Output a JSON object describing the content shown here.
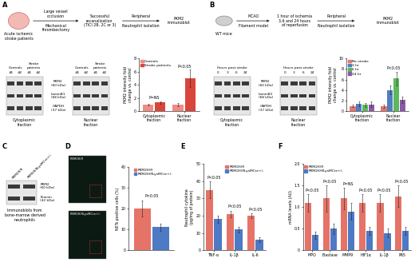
{
  "chart_data": [
    {
      "type": "bar",
      "ylabel": "PKM2 intensity fold\nchange vs. control",
      "categories": [
        "Cytoplasmic\nfraction",
        "Nuclear\nfraction"
      ],
      "series": [
        {
          "name": "Controls",
          "color": "#f08c84",
          "values": [
            1.0,
            1.0
          ],
          "errors": [
            0.15,
            0.25
          ]
        },
        {
          "name": "Stroke patients",
          "color": "#d9453b",
          "values": [
            1.3,
            5.0
          ],
          "errors": [
            0.2,
            1.3
          ]
        }
      ],
      "ylim": [
        0,
        8
      ],
      "yticks": [
        0,
        2,
        4,
        6,
        8
      ],
      "annotations": [
        "P=NS",
        "P<0.05"
      ],
      "legend": "upper left"
    },
    {
      "type": "bar",
      "ylabel": "PKM2 intensity fold\nchange vs. control",
      "categories": [
        "Cytoplasmic\nfraction",
        "Nuclear\nfraction"
      ],
      "series": [
        {
          "name": "Pre-stroke",
          "color": "#e8776e",
          "values": [
            1.0,
            1.0
          ],
          "errors": [
            0.2,
            0.3
          ]
        },
        {
          "name": "3 hr",
          "color": "#4f7fc0",
          "values": [
            1.4,
            4.0
          ],
          "errors": [
            0.5,
            0.8
          ]
        },
        {
          "name": "6 hr",
          "color": "#5cb85c",
          "values": [
            1.2,
            6.2
          ],
          "errors": [
            0.4,
            1.3
          ]
        },
        {
          "name": "24 hr",
          "color": "#8a5aa8",
          "values": [
            1.3,
            2.2
          ],
          "errors": [
            0.5,
            0.6
          ]
        }
      ],
      "ylim": [
        0,
        10
      ],
      "yticks": [
        0,
        2,
        4,
        6,
        8,
        10
      ],
      "annotations": [
        null,
        "P<0.05"
      ],
      "legend": "upper left"
    },
    {
      "type": "bar",
      "ylabel": "NETs positive cells (%)",
      "categories": [
        null
      ],
      "series": [
        {
          "name": "PKM2fl/fl",
          "color": "#e57368",
          "values": [
            20
          ],
          "errors": [
            4
          ]
        },
        {
          "name": "PKM2fl/flLysMCre+/-",
          "color": "#4e79c4",
          "values": [
            11
          ],
          "errors": [
            1.8
          ]
        }
      ],
      "ylim": [
        0,
        40
      ],
      "yticks": [
        0,
        10,
        20,
        30,
        40
      ],
      "annotations": [
        "P<0.05"
      ],
      "legend": "upper right",
      "tick_labels": "y"
    },
    {
      "type": "bar",
      "ylabel": "Neutrophil cytokine\n(pg/mg of protein)",
      "categories": [
        "TNF-α",
        "IL-1β",
        "IL-6"
      ],
      "series": [
        {
          "name": "PKM2fl/fl",
          "color": "#e57368",
          "values": [
            35,
            21,
            20
          ],
          "errors": [
            5,
            2,
            1.5
          ]
        },
        {
          "name": "PKM2fl/flLysMCre+/-",
          "color": "#4e79c4",
          "values": [
            18,
            12,
            6
          ],
          "errors": [
            2,
            1.5,
            1.5
          ]
        }
      ],
      "ylim": [
        0,
        50
      ],
      "yticks": [
        0,
        10,
        20,
        30,
        40,
        50
      ],
      "annotations": [
        "P<0.05",
        "P<0.05",
        "P<0.05"
      ],
      "legend": "upper right"
    },
    {
      "type": "bar",
      "ylabel": "mRNA levels (AU)",
      "categories": [
        "MPO",
        "Elastase",
        "MMP9",
        "HIF1α",
        "IL-1β",
        "P65"
      ],
      "series": [
        {
          "name": "PKM2fl/fl",
          "color": "#e57368",
          "values": [
            1.1,
            1.2,
            1.2,
            1.1,
            1.1,
            1.25
          ],
          "errors": [
            0.2,
            0.3,
            0.25,
            0.2,
            0.2,
            0.25
          ]
        },
        {
          "name": "PKM2fl/flLysMCre+/-",
          "color": "#4e79c4",
          "values": [
            0.35,
            0.5,
            0.9,
            0.45,
            0.4,
            0.45
          ],
          "errors": [
            0.08,
            0.12,
            0.2,
            0.1,
            0.1,
            0.1
          ]
        }
      ],
      "ylim": [
        0,
        2.0
      ],
      "yticks": [
        0,
        0.5,
        {
          "value": 1.0,
          "label": "1.0"
        },
        1.5,
        {
          "value": 2.0,
          "label": "2.0"
        }
      ],
      "annotations": [
        "P<0.05",
        "P<0.05",
        "P=NS",
        "P<0.05",
        "P<0.05",
        "P<0.05"
      ],
      "legend": "upper left"
    }
  ],
  "figure": {
    "panel_labels": [
      "A",
      "B",
      "C",
      "D",
      "E",
      "F"
    ],
    "a_flow": {
      "subject": "Acute ischemic\nstroke patients",
      "step1_top": "Large vessel\nocclusion",
      "step1_bottom": "Mechanical\nthrombectomy",
      "step2": "Successful\nrecanalization\n(TICI 2B, 2C or 3)",
      "step3_top": "Peripheral",
      "step3_bottom": "Neutrophil isolation",
      "step4": "PKM2\nimmunoblot"
    },
    "a_blot": {
      "groups": [
        "Controls",
        "Stroke\npatients"
      ],
      "lanes": [
        "#1",
        "#2"
      ],
      "rows": [
        "PKM2\n(60 kDa)",
        "LaminB1\n(68 kDa)",
        "GAPDH\n(37 kDa)"
      ],
      "fractions": [
        "Cytoplasmic\nfraction",
        "Nuclear\nfraction"
      ]
    },
    "b_flow": {
      "subject": "WT mice",
      "step1_top": "MCAO",
      "step1_bottom": "Filament model",
      "step2": "1 hour of ischemia\n3,6 and 24 hours\nof reperfusion",
      "step3_top": "Peripheral",
      "step3_bottom": "Neutrophil isolation",
      "step4": "PKM2\nimmunoblot"
    },
    "b_blot": {
      "header": "Hours post-stroke",
      "lanes": [
        "0",
        "3",
        "6",
        "24"
      ],
      "rows": [
        "PKM2\n(60 kDa)",
        "LaminB1\n(68 kDa)",
        "GAPDH\n(37 kDa)"
      ],
      "fractions": [
        "Cytoplasmic\nfraction",
        "Nuclear\nfraction"
      ]
    },
    "c_blot": {
      "lanes": [
        "PKM2fl/fl",
        "PKM2fl/flLysMCre+/-"
      ],
      "rows": [
        "PKM2\n(60 kDa)",
        "B-actin\n(42 kDa)"
      ],
      "caption": "Immunoblots from\nbone-marrow derived\nneutrophils"
    },
    "d_images": [
      "PKM2fl/fl",
      "PKM2fl/flLysMCre+/-"
    ]
  }
}
